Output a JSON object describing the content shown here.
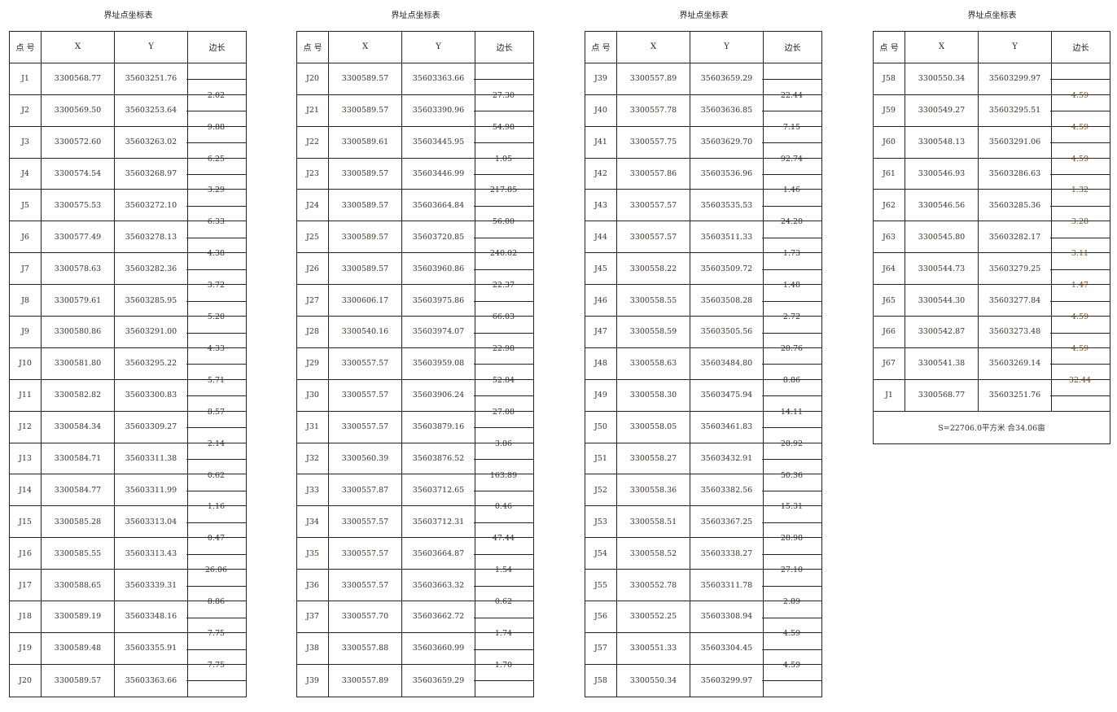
{
  "headers": {
    "point": "点 号",
    "x": "X",
    "y": "Y",
    "edge": "边长"
  },
  "tables": [
    {
      "title": "界址点坐标表",
      "rows": [
        [
          "J1",
          "3300568.77",
          "35603251.76"
        ],
        [
          "J2",
          "3300569.50",
          "35603253.64"
        ],
        [
          "J3",
          "3300572.60",
          "35603263.02"
        ],
        [
          "J4",
          "3300574.54",
          "35603268.97"
        ],
        [
          "J5",
          "3300575.53",
          "35603272.10"
        ],
        [
          "J6",
          "3300577.49",
          "35603278.13"
        ],
        [
          "J7",
          "3300578.63",
          "35603282.36"
        ],
        [
          "J8",
          "3300579.61",
          "35603285.95"
        ],
        [
          "J9",
          "3300580.86",
          "35603291.00"
        ],
        [
          "J10",
          "3300581.80",
          "35603295.22"
        ],
        [
          "J11",
          "3300582.82",
          "35603300.83"
        ],
        [
          "J12",
          "3300584.34",
          "35603309.27"
        ],
        [
          "J13",
          "3300584.71",
          "35603311.38"
        ],
        [
          "J14",
          "3300584.77",
          "35603311.99"
        ],
        [
          "J15",
          "3300585.28",
          "35603313.04"
        ],
        [
          "J16",
          "3300585.55",
          "35603313.43"
        ],
        [
          "J17",
          "3300588.65",
          "35603339.31"
        ],
        [
          "J18",
          "3300589.19",
          "35603348.16"
        ],
        [
          "J19",
          "3300589.48",
          "35603355.91"
        ],
        [
          "J20",
          "3300589.57",
          "35603363.66"
        ]
      ],
      "edges": [
        "2.02",
        "9.88",
        "6.25",
        "3.29",
        "6.33",
        "4.38",
        "3.72",
        "5.20",
        "4.33",
        "5.71",
        "8.57",
        "2.14",
        "0.62",
        "1.16",
        "0.47",
        "26.06",
        "8.86",
        "7.75",
        "7.75"
      ]
    },
    {
      "title": "界址点坐标表",
      "rows": [
        [
          "J20",
          "3300589.57",
          "35603363.66"
        ],
        [
          "J21",
          "3300589.57",
          "35603390.96"
        ],
        [
          "J22",
          "3300589.61",
          "35603445.95"
        ],
        [
          "J23",
          "3300589.57",
          "35603446.99"
        ],
        [
          "J24",
          "3300589.57",
          "35603664.84"
        ],
        [
          "J25",
          "3300589.57",
          "35603720.85"
        ],
        [
          "J26",
          "3300589.57",
          "35603960.86"
        ],
        [
          "J27",
          "3300606.17",
          "35603975.86"
        ],
        [
          "J28",
          "3300540.16",
          "35603974.07"
        ],
        [
          "J29",
          "3300557.57",
          "35603959.08"
        ],
        [
          "J30",
          "3300557.57",
          "35603906.24"
        ],
        [
          "J31",
          "3300557.57",
          "35603879.16"
        ],
        [
          "J32",
          "3300560.39",
          "35603876.52"
        ],
        [
          "J33",
          "3300557.87",
          "35603712.65"
        ],
        [
          "J34",
          "3300557.57",
          "35603712.31"
        ],
        [
          "J35",
          "3300557.57",
          "35603664.87"
        ],
        [
          "J36",
          "3300557.57",
          "35603663.32"
        ],
        [
          "J37",
          "3300557.70",
          "35603662.72"
        ],
        [
          "J38",
          "3300557.88",
          "35603660.99"
        ],
        [
          "J39",
          "3300557.89",
          "35603659.29"
        ]
      ],
      "edges": [
        "27.30",
        "54.98",
        "1.05",
        "217.85",
        "56.00",
        "240.02",
        "22.37",
        "66.03",
        "22.98",
        "52.84",
        "27.08",
        "3.86",
        "163.89",
        "0.46",
        "47.44",
        "1.54",
        "0.62",
        "1.74",
        "1.70"
      ]
    },
    {
      "title": "界址点坐标表",
      "rows": [
        [
          "J39",
          "3300557.89",
          "35603659.29"
        ],
        [
          "J40",
          "3300557.78",
          "35603636.85"
        ],
        [
          "J41",
          "3300557.75",
          "35603629.70"
        ],
        [
          "J42",
          "3300557.86",
          "35603536.96"
        ],
        [
          "J43",
          "3300557.57",
          "35603535.53"
        ],
        [
          "J44",
          "3300557.57",
          "35603511.33"
        ],
        [
          "J45",
          "3300558.22",
          "35603509.72"
        ],
        [
          "J46",
          "3300558.55",
          "35603508.28"
        ],
        [
          "J47",
          "3300558.59",
          "35603505.56"
        ],
        [
          "J48",
          "3300558.63",
          "35603484.80"
        ],
        [
          "J49",
          "3300558.30",
          "35603475.94"
        ],
        [
          "J50",
          "3300558.05",
          "35603461.83"
        ],
        [
          "J51",
          "3300558.27",
          "35603432.91"
        ],
        [
          "J52",
          "3300558.36",
          "35603382.56"
        ],
        [
          "J53",
          "3300558.51",
          "35603367.25"
        ],
        [
          "J54",
          "3300558.52",
          "35603338.27"
        ],
        [
          "J55",
          "3300552.78",
          "35603311.78"
        ],
        [
          "J56",
          "3300552.25",
          "35603308.94"
        ],
        [
          "J57",
          "3300551.33",
          "35603304.45"
        ],
        [
          "J58",
          "3300550.34",
          "35603299.97"
        ]
      ],
      "edges": [
        "22.44",
        "7.15",
        "92.74",
        "1.46",
        "24.20",
        "1.73",
        "1.48",
        "2.72",
        "20.76",
        "8.86",
        "14.11",
        "28.92",
        "50.36",
        "15.31",
        "28.98",
        "27.10",
        "2.89",
        "4.59",
        "4.59"
      ]
    },
    {
      "title": "界址点坐标表",
      "rows": [
        [
          "J58",
          "3300550.34",
          "35603299.97"
        ],
        [
          "J59",
          "3300549.27",
          "35603295.51"
        ],
        [
          "J60",
          "3300548.13",
          "35603291.06"
        ],
        [
          "J61",
          "3300546.93",
          "35603286.63"
        ],
        [
          "J62",
          "3300546.56",
          "35603285.36"
        ],
        [
          "J63",
          "3300545.80",
          "35603282.17"
        ],
        [
          "J64",
          "3300544.73",
          "35603279.25"
        ],
        [
          "J65",
          "3300544.30",
          "35603277.84"
        ],
        [
          "J66",
          "3300542.87",
          "35603273.48"
        ],
        [
          "J67",
          "3300541.38",
          "35603269.14"
        ],
        [
          "J1",
          "3300568.77",
          "35603251.76"
        ]
      ],
      "edges": [
        "4.59",
        "4.59",
        "4.59",
        "1.32",
        "3.28",
        "3.11",
        "1.47",
        "4.59",
        "4.59",
        "32.44"
      ],
      "footer": "S=22706.0平方米 合34.06亩"
    }
  ]
}
